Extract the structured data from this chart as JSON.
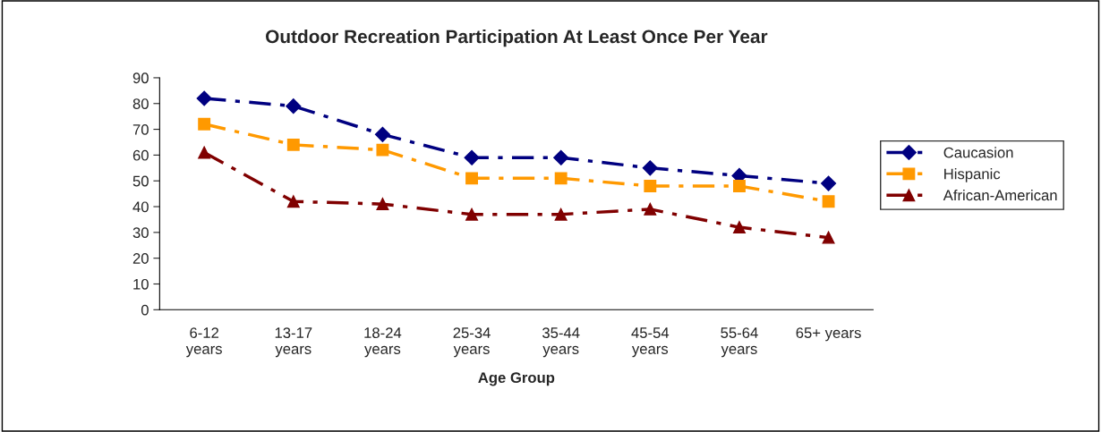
{
  "chart_data": {
    "type": "line",
    "title": "Outdoor Recreation Participation At Least Once Per Year",
    "xlabel": "Age Group",
    "categories": [
      "6-12\nyears",
      "13-17\nyears",
      "18-24\nyears",
      "25-34\nyears",
      "35-44\nyears",
      "45-54\nyears",
      "55-64\nyears",
      "65+ years"
    ],
    "series": [
      {
        "name": "Caucasion",
        "color": "#000080",
        "marker": "diamond",
        "values": [
          82,
          79,
          68,
          59,
          59,
          55,
          52,
          49
        ]
      },
      {
        "name": "Hispanic",
        "color": "#ff9900",
        "marker": "square",
        "values": [
          72,
          64,
          62,
          51,
          51,
          48,
          48,
          42
        ]
      },
      {
        "name": "African-American",
        "color": "#800000",
        "marker": "triangle",
        "values": [
          61,
          42,
          41,
          37,
          37,
          39,
          32,
          28
        ]
      }
    ],
    "ylim": [
      0,
      90
    ],
    "yticks": [
      0,
      10,
      20,
      30,
      40,
      50,
      60,
      70,
      80,
      90
    ],
    "grid": false,
    "legend": "right",
    "line_style": "dashed"
  }
}
